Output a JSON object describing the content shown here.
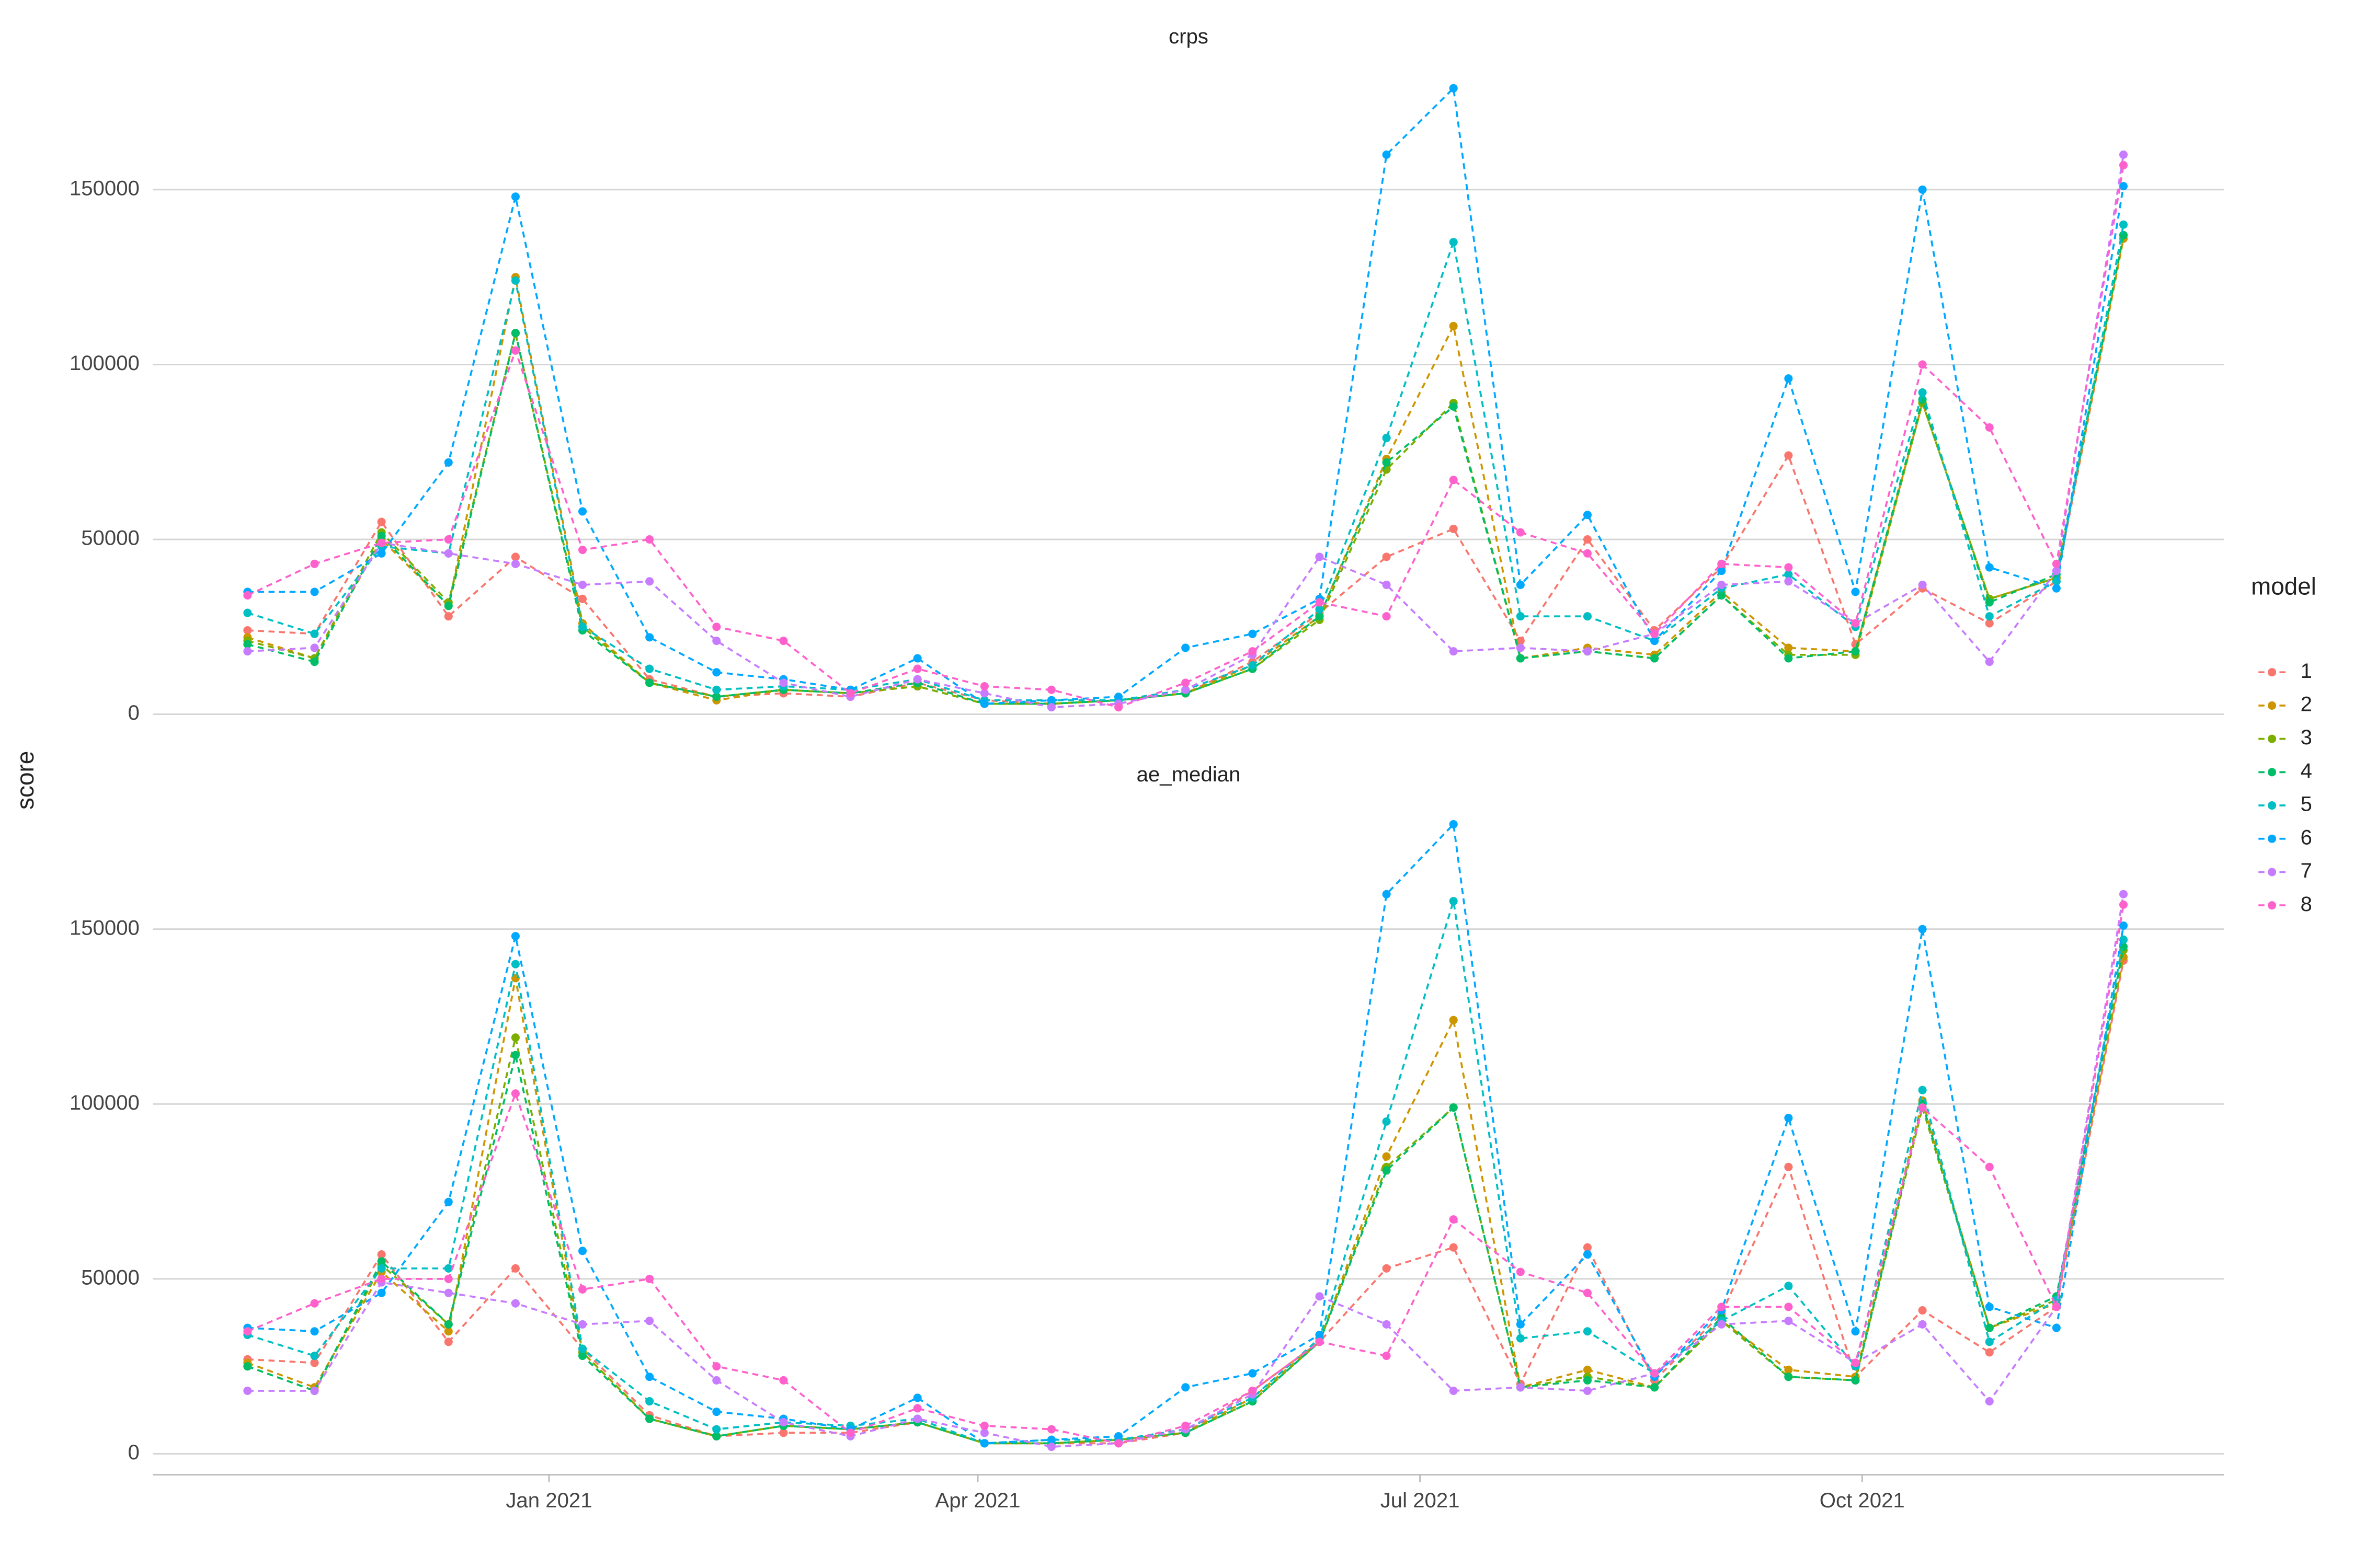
{
  "chart_data": {
    "type": "line",
    "y_label": "score",
    "legend_title": "model",
    "grid": true,
    "x": [
      0,
      1,
      2,
      3,
      4,
      5,
      6,
      7,
      8,
      9,
      10,
      11,
      12,
      13,
      14,
      15,
      16,
      17,
      18,
      19,
      20,
      21,
      22,
      23,
      24,
      25,
      26,
      27,
      28
    ],
    "xlim": [
      -1.41,
      29.5
    ],
    "xticks": [
      {
        "value": 4.5,
        "label": "Jan 2021"
      },
      {
        "value": 10.9,
        "label": "Apr 2021"
      },
      {
        "value": 17.5,
        "label": "Jul 2021"
      },
      {
        "value": 24.1,
        "label": "Oct 2021"
      }
    ],
    "ylim": [
      -6000,
      187000
    ],
    "yticks": [
      0,
      50000,
      100000,
      150000
    ],
    "series": [
      {
        "name": "1",
        "color": "#F8766D"
      },
      {
        "name": "2",
        "color": "#CD9600"
      },
      {
        "name": "3",
        "color": "#7CAE00"
      },
      {
        "name": "4",
        "color": "#00BE67"
      },
      {
        "name": "5",
        "color": "#00BFC4"
      },
      {
        "name": "6",
        "color": "#00A9FF"
      },
      {
        "name": "7",
        "color": "#C77CFF"
      },
      {
        "name": "8",
        "color": "#FF61CC"
      }
    ],
    "panels": [
      {
        "title": "crps",
        "values": [
          [
            24000,
            23000,
            55000,
            28000,
            45000,
            33000,
            10000,
            5000,
            6000,
            5000,
            9000,
            4000,
            3000,
            4000,
            6000,
            15000,
            29000,
            45000,
            53000,
            21000,
            50000,
            24000,
            42000,
            74000,
            20000,
            36000,
            26000,
            38000,
            136000
          ],
          [
            22000,
            16000,
            50000,
            31000,
            125000,
            26000,
            9000,
            4000,
            7000,
            6000,
            8000,
            3000,
            3000,
            4000,
            6000,
            14000,
            28000,
            73000,
            111000,
            16000,
            19000,
            17000,
            35000,
            19000,
            18000,
            89000,
            33000,
            39000,
            136000
          ],
          [
            21000,
            16000,
            52000,
            32000,
            109000,
            25000,
            9000,
            5000,
            7000,
            6000,
            8000,
            3000,
            3000,
            4000,
            6000,
            13000,
            27000,
            70000,
            89000,
            16000,
            18000,
            16000,
            34000,
            17000,
            17000,
            89000,
            33000,
            39000,
            137000
          ],
          [
            20000,
            15000,
            51000,
            31000,
            109000,
            24000,
            9000,
            5000,
            7000,
            6000,
            9000,
            3000,
            3000,
            4000,
            6000,
            13000,
            28000,
            72000,
            88000,
            16000,
            18000,
            16000,
            34000,
            16000,
            18000,
            90000,
            32000,
            40000,
            137000
          ],
          [
            29000,
            23000,
            48000,
            46000,
            124000,
            25000,
            13000,
            7000,
            8000,
            7000,
            10000,
            4000,
            4000,
            4000,
            7000,
            14000,
            30000,
            79000,
            135000,
            28000,
            28000,
            21000,
            36000,
            40000,
            25000,
            92000,
            28000,
            38000,
            140000
          ],
          [
            35000,
            35000,
            46000,
            72000,
            148000,
            58000,
            22000,
            12000,
            10000,
            7000,
            16000,
            3000,
            4000,
            5000,
            19000,
            23000,
            33000,
            160000,
            179000,
            37000,
            57000,
            21000,
            41000,
            96000,
            35000,
            150000,
            42000,
            36000,
            151000
          ],
          [
            18000,
            19000,
            49000,
            46000,
            43000,
            37000,
            38000,
            21000,
            9000,
            5000,
            10000,
            6000,
            2000,
            3000,
            7000,
            17000,
            45000,
            37000,
            18000,
            19000,
            18000,
            23000,
            37000,
            38000,
            26000,
            37000,
            15000,
            41000,
            160000
          ],
          [
            34000,
            43000,
            49000,
            50000,
            104000,
            47000,
            50000,
            25000,
            21000,
            6000,
            13000,
            8000,
            7000,
            2000,
            9000,
            18000,
            32000,
            28000,
            67000,
            52000,
            46000,
            23000,
            43000,
            42000,
            26000,
            100000,
            82000,
            43000,
            157000
          ]
        ]
      },
      {
        "title": "ae_median",
        "values": [
          [
            27000,
            26000,
            57000,
            32000,
            53000,
            30000,
            11000,
            5000,
            6000,
            6000,
            9000,
            3000,
            3000,
            3000,
            6000,
            18000,
            32000,
            53000,
            59000,
            20000,
            59000,
            21000,
            40000,
            82000,
            22000,
            41000,
            29000,
            42000,
            141000
          ],
          [
            26000,
            19000,
            52000,
            35000,
            136000,
            29000,
            10000,
            5000,
            8000,
            7000,
            9000,
            3000,
            3000,
            4000,
            6000,
            16000,
            32000,
            85000,
            124000,
            19000,
            24000,
            19000,
            38000,
            24000,
            22000,
            101000,
            36000,
            43000,
            142000
          ],
          [
            25000,
            18000,
            54000,
            37000,
            119000,
            29000,
            10000,
            5000,
            8000,
            7000,
            9000,
            3000,
            3000,
            4000,
            6000,
            15000,
            32000,
            82000,
            99000,
            19000,
            22000,
            19000,
            38000,
            22000,
            21000,
            99000,
            36000,
            44000,
            144000
          ],
          [
            25000,
            18000,
            55000,
            37000,
            114000,
            28000,
            10000,
            5000,
            8000,
            7000,
            9000,
            3000,
            3000,
            4000,
            6000,
            15000,
            32000,
            81000,
            99000,
            19000,
            21000,
            19000,
            39000,
            22000,
            21000,
            100000,
            36000,
            45000,
            145000
          ],
          [
            34000,
            28000,
            53000,
            53000,
            140000,
            30000,
            15000,
            7000,
            9000,
            8000,
            10000,
            3000,
            4000,
            4000,
            7000,
            16000,
            33000,
            95000,
            158000,
            33000,
            35000,
            23000,
            38000,
            48000,
            25000,
            104000,
            32000,
            44000,
            147000
          ],
          [
            36000,
            35000,
            46000,
            72000,
            148000,
            58000,
            22000,
            12000,
            10000,
            7000,
            16000,
            3000,
            4000,
            5000,
            19000,
            23000,
            34000,
            160000,
            180000,
            37000,
            57000,
            22000,
            41000,
            96000,
            35000,
            150000,
            42000,
            36000,
            151000
          ],
          [
            18000,
            18000,
            49000,
            46000,
            43000,
            37000,
            38000,
            21000,
            9000,
            5000,
            10000,
            6000,
            2000,
            3000,
            7000,
            17000,
            45000,
            37000,
            18000,
            19000,
            18000,
            23000,
            37000,
            38000,
            26000,
            37000,
            15000,
            42000,
            160000
          ],
          [
            35000,
            43000,
            50000,
            50000,
            103000,
            47000,
            50000,
            25000,
            21000,
            6000,
            13000,
            8000,
            7000,
            3000,
            8000,
            18000,
            32000,
            28000,
            67000,
            52000,
            46000,
            23000,
            42000,
            42000,
            26000,
            99000,
            82000,
            42000,
            157000
          ]
        ]
      }
    ]
  }
}
